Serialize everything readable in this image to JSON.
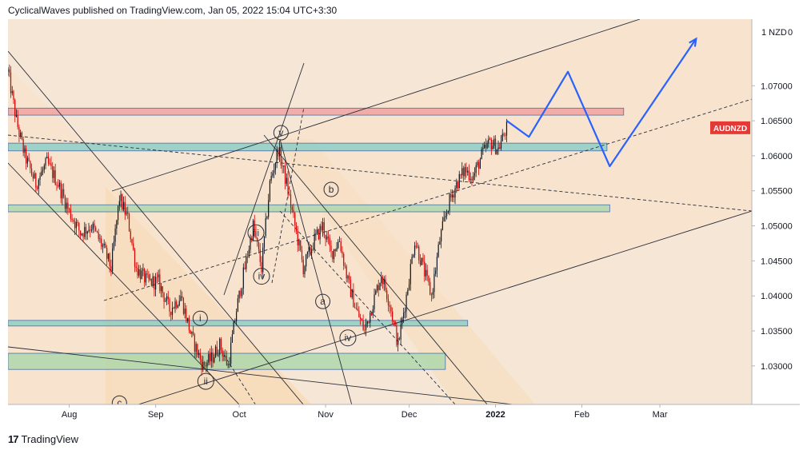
{
  "header": {
    "text": "CyclicalWaves published on TradingView.com, Jan 05, 2022 15:04 UTC+3:30"
  },
  "footer": {
    "logo_glyph": "17",
    "brand": "TradingView"
  },
  "chart_data": {
    "type": "candlestick",
    "symbol": "AUDNZD",
    "currency_label": "NZD",
    "currency_value": "0",
    "ylim": [
      1.0245,
      1.0795
    ],
    "y_ticks": [
      "1.07000",
      "1.06500",
      "1.06000",
      "1.05500",
      "1.05000",
      "1.04500",
      "1.04000",
      "1.03500",
      "1.03000"
    ],
    "x_range": [
      "2021-07-10",
      "2022-04-03"
    ],
    "x_ticks": [
      {
        "label": "Aug",
        "date": "2021-08-01"
      },
      {
        "label": "Sep",
        "date": "2021-09-01"
      },
      {
        "label": "Oct",
        "date": "2021-10-01"
      },
      {
        "label": "Nov",
        "date": "2021-11-01"
      },
      {
        "label": "Dec",
        "date": "2021-12-01"
      },
      {
        "label": "2022",
        "date": "2022-01-01"
      },
      {
        "label": "Feb",
        "date": "2022-02-01"
      },
      {
        "label": "Mar",
        "date": "2022-03-01"
      }
    ],
    "price_path": [
      [
        "2021-07-10",
        1.072
      ],
      [
        "2021-07-13",
        1.065
      ],
      [
        "2021-07-16",
        1.06
      ],
      [
        "2021-07-20",
        1.056
      ],
      [
        "2021-07-24",
        1.059
      ],
      [
        "2021-07-28",
        1.056
      ],
      [
        "2021-08-01",
        1.052
      ],
      [
        "2021-08-05",
        1.049
      ],
      [
        "2021-08-09",
        1.05
      ],
      [
        "2021-08-13",
        1.047
      ],
      [
        "2021-08-16",
        1.044
      ],
      [
        "2021-08-19",
        1.054
      ],
      [
        "2021-08-22",
        1.051
      ],
      [
        "2021-08-25",
        1.044
      ],
      [
        "2021-08-29",
        1.042
      ],
      [
        "2021-09-02",
        1.042
      ],
      [
        "2021-09-06",
        1.038
      ],
      [
        "2021-09-10",
        1.04
      ],
      [
        "2021-09-14",
        1.034
      ],
      [
        "2021-09-18",
        1.03
      ],
      [
        "2021-09-21",
        1.031
      ],
      [
        "2021-09-24",
        1.033
      ],
      [
        "2021-09-27",
        1.03
      ],
      [
        "2021-09-30",
        1.038
      ],
      [
        "2021-10-03",
        1.044
      ],
      [
        "2021-10-06",
        1.05
      ],
      [
        "2021-10-09",
        1.044
      ],
      [
        "2021-10-12",
        1.056
      ],
      [
        "2021-10-15",
        1.061
      ],
      [
        "2021-10-18",
        1.056
      ],
      [
        "2021-10-21",
        1.05
      ],
      [
        "2021-10-24",
        1.044
      ],
      [
        "2021-10-28",
        1.048
      ],
      [
        "2021-10-31",
        1.05
      ],
      [
        "2021-11-03",
        1.046
      ],
      [
        "2021-11-06",
        1.048
      ],
      [
        "2021-11-09",
        1.042
      ],
      [
        "2021-11-12",
        1.038
      ],
      [
        "2021-11-15",
        1.035
      ],
      [
        "2021-11-18",
        1.039
      ],
      [
        "2021-11-21",
        1.043
      ],
      [
        "2021-11-24",
        1.039
      ],
      [
        "2021-11-27",
        1.033
      ],
      [
        "2021-11-30",
        1.04
      ],
      [
        "2021-12-03",
        1.048
      ],
      [
        "2021-12-06",
        1.044
      ],
      [
        "2021-12-09",
        1.04
      ],
      [
        "2021-12-12",
        1.048
      ],
      [
        "2021-12-15",
        1.053
      ],
      [
        "2021-12-18",
        1.056
      ],
      [
        "2021-12-21",
        1.058
      ],
      [
        "2021-12-24",
        1.057
      ],
      [
        "2021-12-27",
        1.06
      ],
      [
        "2021-12-30",
        1.062
      ],
      [
        "2022-01-02",
        1.061
      ],
      [
        "2022-01-05",
        1.064
      ]
    ],
    "projection": [
      [
        "2022-01-05",
        1.065
      ],
      [
        "2022-01-13",
        1.0627
      ],
      [
        "2022-01-27",
        1.072
      ],
      [
        "2022-02-11",
        1.0585
      ],
      [
        "2022-03-14",
        1.0767
      ]
    ],
    "zones": [
      {
        "x1": "2021-07-10",
        "x2": "2022-02-16",
        "y1": 1.0658,
        "y2": 1.0668,
        "color": "#ef9a9a"
      },
      {
        "x1": "2021-07-10",
        "x2": "2022-02-10",
        "y1": 1.0607,
        "y2": 1.0618,
        "color": "#80cbc4"
      },
      {
        "x1": "2021-07-10",
        "x2": "2022-02-11",
        "y1": 1.052,
        "y2": 1.053,
        "color": "#a5d6a7"
      },
      {
        "x1": "2021-07-10",
        "x2": "2021-12-22",
        "y1": 1.0357,
        "y2": 1.0365,
        "color": "#80cbc4"
      },
      {
        "x1": "2021-07-10",
        "x2": "2021-12-14",
        "y1": 1.0295,
        "y2": 1.0318,
        "color": "#a5d6a7"
      }
    ],
    "wave_labels": [
      {
        "label": "v",
        "date": "2021-10-16",
        "price": 1.0633,
        "circled": true
      },
      {
        "label": "iii",
        "date": "2021-10-07",
        "price": 1.049,
        "circled": true
      },
      {
        "label": "iv",
        "date": "2021-10-09",
        "price": 1.0428,
        "circled": true
      },
      {
        "label": "i",
        "date": "2021-09-17",
        "price": 1.0368,
        "circled": true
      },
      {
        "label": "ii",
        "date": "2021-09-19",
        "price": 1.0278,
        "circled": true
      },
      {
        "label": "iv",
        "date": "2021-11-09",
        "price": 1.034,
        "circled": true
      },
      {
        "label": "b",
        "date": "2021-11-03",
        "price": 1.0552,
        "circled": true
      },
      {
        "label": "a",
        "date": "2021-10-31",
        "price": 1.0392,
        "circled": true
      },
      {
        "label": "c",
        "date": "2021-08-19",
        "price": 1.0247,
        "circled": true
      }
    ],
    "last_price_label": "AUDNZD",
    "grid": false,
    "background": "#f6e6d6",
    "candle_up_color": "#131722",
    "candle_down_color": "#d50000",
    "projection_color": "#2962ff",
    "tag_color": "#e53935"
  }
}
